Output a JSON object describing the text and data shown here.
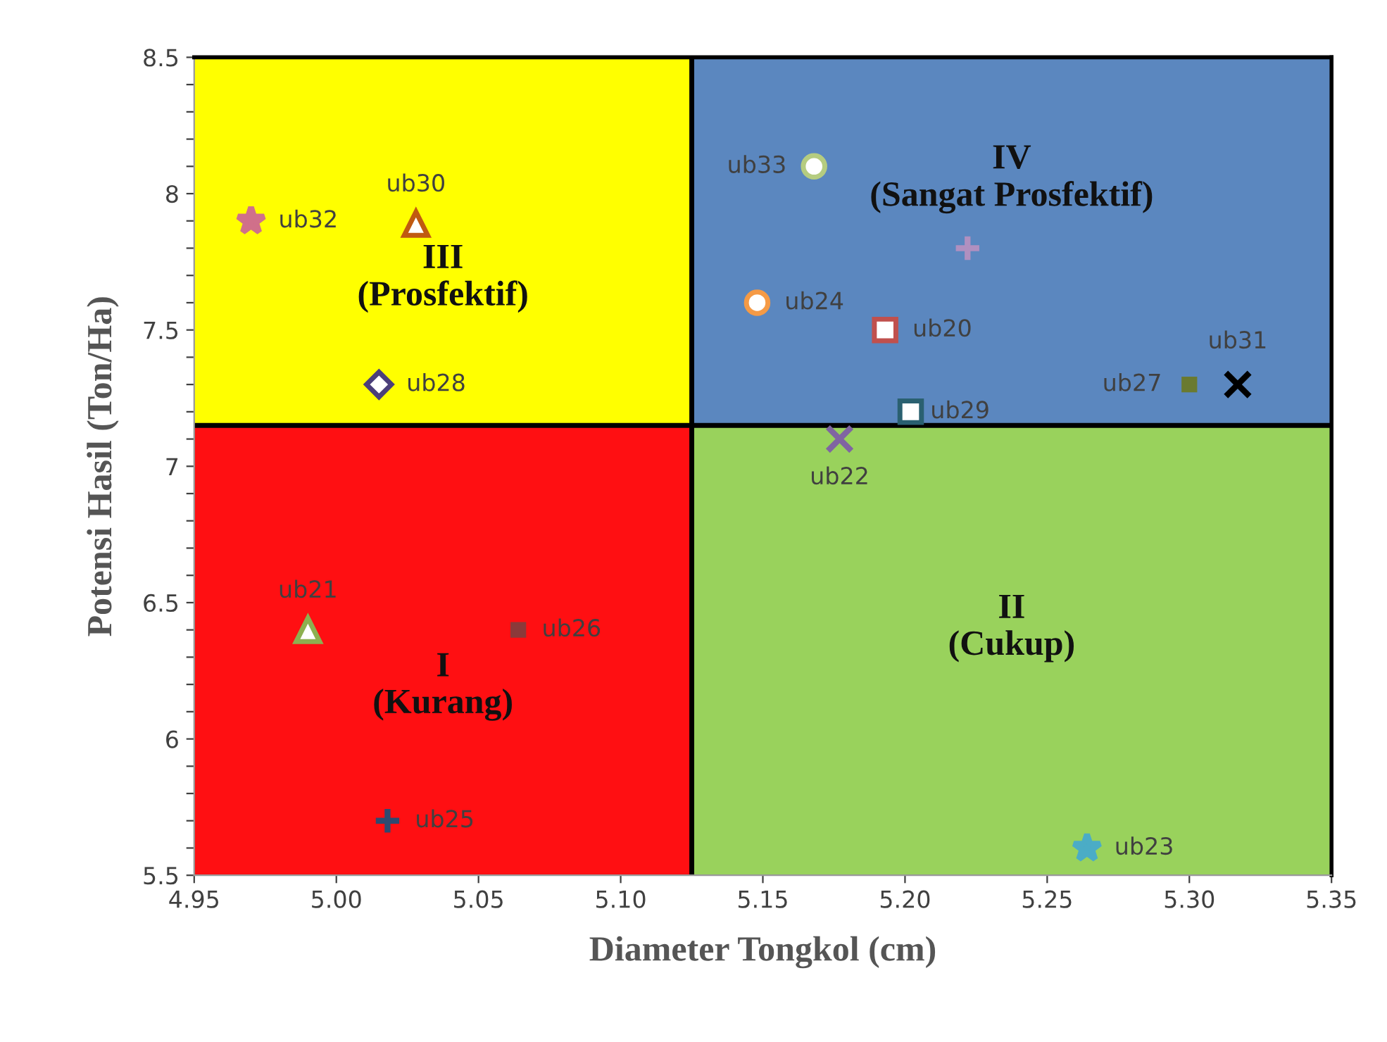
{
  "chart_data": {
    "type": "scatter",
    "xlabel": "Diameter Tongkol (cm)",
    "ylabel": "Potensi Hasil (Ton/Ha)",
    "xlim": [
      4.95,
      5.35
    ],
    "ylim": [
      5.5,
      8.5
    ],
    "xticks": [
      4.95,
      {
        "value": 5.0,
        "label": "5.00"
      },
      5.05,
      {
        "value": 5.1,
        "label": "5.10"
      },
      5.15,
      {
        "value": 5.2,
        "label": "5.20"
      },
      5.25,
      {
        "value": 5.3,
        "label": "5.30"
      },
      5.35
    ],
    "yticks": [
      5.5,
      {
        "value": 5.6,
        "label": null
      },
      {
        "value": 5.7,
        "label": null
      },
      {
        "value": 5.8,
        "label": null
      },
      {
        "value": 5.9,
        "label": null
      },
      6,
      {
        "value": 6.1,
        "label": null
      },
      {
        "value": 6.2,
        "label": null
      },
      {
        "value": 6.3,
        "label": null
      },
      {
        "value": 6.4,
        "label": null
      },
      6.5,
      {
        "value": 6.6,
        "label": null
      },
      {
        "value": 6.7,
        "label": null
      },
      {
        "value": 6.8,
        "label": null
      },
      {
        "value": 6.9,
        "label": null
      },
      7,
      {
        "value": 7.1,
        "label": null
      },
      {
        "value": 7.2,
        "label": null
      },
      {
        "value": 7.3,
        "label": null
      },
      {
        "value": 7.4,
        "label": null
      },
      7.5,
      {
        "value": 7.6,
        "label": null
      },
      {
        "value": 7.7,
        "label": null
      },
      {
        "value": 7.8,
        "label": null
      },
      {
        "value": 7.9,
        "label": null
      },
      8,
      {
        "value": 8.1,
        "label": null
      },
      {
        "value": 8.2,
        "label": null
      },
      {
        "value": 8.3,
        "label": null
      },
      {
        "value": 8.4,
        "label": null
      },
      8.5
    ],
    "grid": false,
    "legend": false,
    "bands": [
      {
        "axis": "y",
        "from": 7.15,
        "to": 8.5,
        "label": "III\n(Prosfektif)",
        "color": "#ffff00"
      },
      {
        "axis": "y",
        "from": 7.15,
        "to": 8.5,
        "label": "IV\n(Sangat Prosfektif)",
        "color": "#5b87bf"
      },
      {
        "axis": "y",
        "from": 5.5,
        "to": 7.15,
        "label": "I\n(Kurang)",
        "color": "#ff0f12"
      },
      {
        "axis": "y",
        "from": 5.5,
        "to": 7.15,
        "label": "II\n(Cukup)",
        "color": "#99d25c"
      }
    ],
    "ref_lines": [
      {
        "axis": "x",
        "value": 5.125,
        "color": "#000000"
      },
      {
        "axis": "y",
        "value": 7.15,
        "color": "#000000"
      }
    ],
    "series": [
      {
        "name": "ub32",
        "color": "#d0708a",
        "marker": "star",
        "x": [
          4.97
        ],
        "values": [
          7.9
        ]
      },
      {
        "name": "ub30",
        "color": "#c05a10",
        "marker": "triangle",
        "x": [
          5.028
        ],
        "values": [
          7.89
        ]
      },
      {
        "name": "ub28",
        "color": "#4b3f7a",
        "marker": "diamond",
        "x": [
          5.015
        ],
        "values": [
          7.3
        ]
      },
      {
        "name": "ub21",
        "color": "#8db050",
        "marker": "triangle",
        "x": [
          4.99
        ],
        "values": [
          6.4
        ]
      },
      {
        "name": "ub26",
        "color": "#8b3a3a",
        "marker": "square",
        "x": [
          5.064
        ],
        "values": [
          6.4
        ]
      },
      {
        "name": "ub25",
        "color": "#2f4a70",
        "marker": "plus",
        "x": [
          5.018
        ],
        "values": [
          5.7
        ]
      },
      {
        "name": "ub33",
        "color": "#b5cc80",
        "marker": "circle",
        "x": [
          5.168
        ],
        "values": [
          8.1
        ]
      },
      {
        "color": "#b090c0",
        "marker": "plus",
        "x": [
          5.222
        ],
        "values": [
          7.8
        ]
      },
      {
        "name": "ub24",
        "color": "#f59a45",
        "marker": "circle",
        "x": [
          5.148
        ],
        "values": [
          7.6
        ]
      },
      {
        "name": "ub20",
        "color": "#c0504d",
        "marker": "square",
        "x": [
          5.193
        ],
        "values": [
          7.5
        ]
      },
      {
        "name": "ub31",
        "color": "#000000",
        "marker": "cross",
        "x": [
          5.317
        ],
        "values": [
          7.3
        ]
      },
      {
        "name": "ub27",
        "color": "#6a7a30",
        "marker": "square",
        "x": [
          5.3
        ],
        "values": [
          7.3
        ]
      },
      {
        "name": "ub29",
        "color": "#2a6070",
        "marker": "square",
        "x": [
          5.202
        ],
        "values": [
          7.2
        ]
      },
      {
        "name": "ub22",
        "color": "#8064a2",
        "marker": "cross",
        "x": [
          5.177
        ],
        "values": [
          7.1
        ]
      },
      {
        "name": "ub23",
        "color": "#4bacc6",
        "marker": "star",
        "x": [
          5.264
        ],
        "values": [
          5.6
        ]
      }
    ]
  }
}
